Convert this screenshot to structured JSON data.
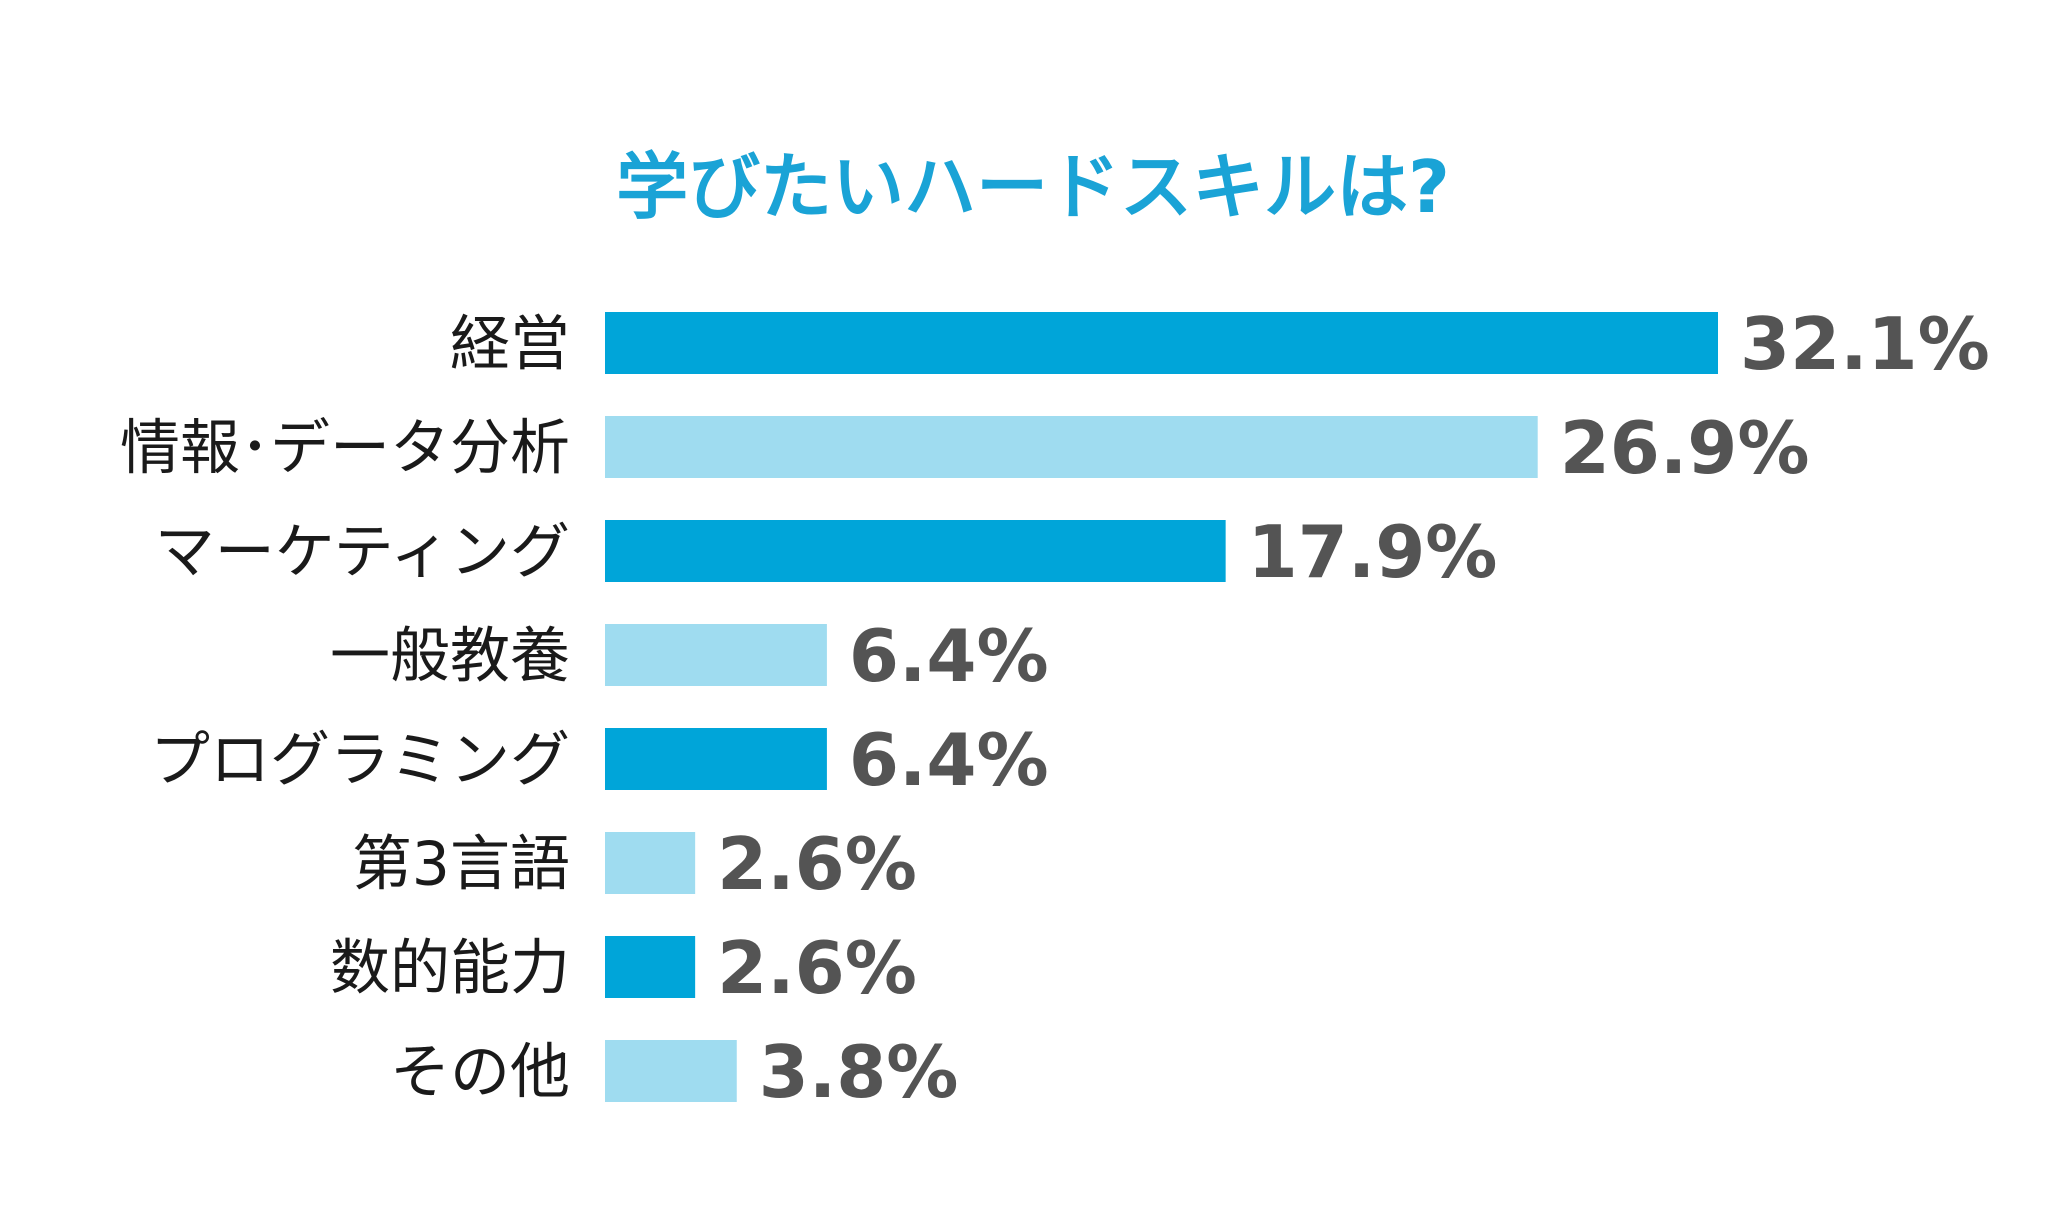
{
  "chart_data": {
    "type": "bar",
    "orientation": "horizontal",
    "title": "学びたいハードスキルは?",
    "categories": [
      "経営",
      "情報･データ分析",
      "マーケティング",
      "一般教養",
      "プログラミング",
      "第3言語",
      "数的能力",
      "その他"
    ],
    "values": [
      32.1,
      26.9,
      17.9,
      6.4,
      6.4,
      2.6,
      2.6,
      3.8
    ],
    "value_labels": [
      "32.1%",
      "26.9%",
      "17.9%",
      "6.4%",
      "6.4%",
      "2.6%",
      "2.6%",
      "3.8%"
    ],
    "unit": "%",
    "xlim": [
      0,
      32.1
    ],
    "grid": false,
    "legend": "none"
  },
  "colors": {
    "title": "#1aa3d6",
    "bar_dark": "#00a5d9",
    "bar_light": "#9fdcf0",
    "category_text": "#1a1a1a",
    "value_text": "#545454"
  }
}
